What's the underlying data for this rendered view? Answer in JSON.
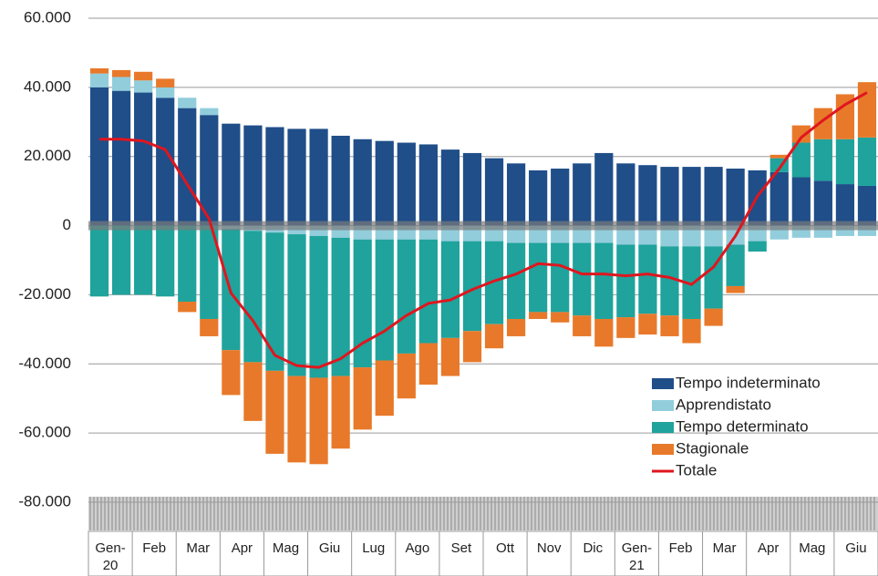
{
  "chart_data": {
    "type": "bar",
    "stacked": true,
    "grid": true,
    "legend": "lower right",
    "ylim": [
      -80000,
      60000
    ],
    "yticks": [
      {
        "value": 60000,
        "label": "60.000"
      },
      {
        "value": 40000,
        "label": "40.000"
      },
      {
        "value": 20000,
        "label": "20.000"
      },
      0,
      {
        "value": -20000,
        "label": "-20.000"
      },
      {
        "value": -40000,
        "label": "-40.000"
      },
      {
        "value": -60000,
        "label": "-60.000"
      },
      {
        "value": -80000,
        "label": "-80.000"
      }
    ],
    "categories": [
      "Gen-20",
      null,
      "Feb",
      null,
      "Mar",
      null,
      "Apr",
      null,
      "Mag",
      null,
      "Giu",
      null,
      "Lug",
      null,
      "Ago",
      null,
      "Set",
      null,
      "Ott",
      null,
      "Nov",
      null,
      "Dic",
      null,
      "Gen-21",
      null,
      "Feb",
      null,
      "Mar",
      null,
      "Apr",
      null,
      "Mag",
      null,
      "Giu",
      null
    ],
    "series": [
      {
        "name": "Tempo indeterminato",
        "color": "#1f4e89",
        "values": [
          40000,
          39000,
          38500,
          37000,
          34000,
          32000,
          29500,
          29000,
          28500,
          28000,
          28000,
          26000,
          25000,
          24500,
          24000,
          23500,
          22000,
          21000,
          19500,
          18000,
          16000,
          16500,
          18000,
          21000,
          18000,
          17500,
          17000,
          17000,
          17000,
          16500,
          16000,
          15500,
          14000,
          13000,
          12000,
          11500
        ]
      },
      {
        "name": "Apprendistato",
        "color": "#92cddc",
        "values": [
          4000,
          4000,
          3500,
          3000,
          3000,
          2000,
          -1000,
          -1500,
          -2000,
          -2500,
          -3000,
          -3500,
          -4000,
          -4000,
          -4000,
          -4000,
          -4500,
          -4500,
          -4500,
          -5000,
          -5000,
          -5000,
          -5000,
          -5000,
          -5500,
          -5500,
          -6000,
          -6000,
          -6000,
          -5500,
          -4500,
          -4000,
          -3500,
          -3500,
          -3000,
          -3000
        ]
      },
      {
        "name": "Tempo determinato",
        "color": "#1fa39c",
        "values": [
          -20500,
          -20000,
          -20000,
          -20500,
          -22000,
          -27000,
          -35000,
          -38000,
          -40000,
          -41000,
          -41000,
          -40000,
          -37000,
          -35000,
          -33000,
          -30000,
          -28000,
          -26000,
          -24000,
          -22000,
          -20000,
          -20000,
          -21000,
          -22000,
          -21000,
          -20000,
          -20000,
          -21000,
          -18000,
          -12000,
          -3000,
          4000,
          10000,
          12000,
          13000,
          14000
        ]
      },
      {
        "name": "Stagionale",
        "color": "#e8792a",
        "values": [
          1500,
          2000,
          2500,
          2500,
          -3000,
          -5000,
          -13000,
          -17000,
          -24000,
          -25000,
          -25000,
          -21000,
          -18000,
          -16000,
          -13000,
          -12000,
          -11000,
          -9000,
          -7000,
          -5000,
          -2000,
          -3000,
          -6000,
          -8000,
          -6000,
          -6000,
          -6000,
          -7000,
          -5000,
          -2000,
          0,
          1000,
          5000,
          9000,
          13000,
          16000
        ]
      },
      {
        "name": "Totale",
        "color": "#e0161e",
        "type": "line",
        "values": [
          25000,
          25000,
          24500,
          22000,
          12000,
          2000,
          -19500,
          -27500,
          -37500,
          -40500,
          -41000,
          -38500,
          -34000,
          -30500,
          -26000,
          -22500,
          -21500,
          -18500,
          -16000,
          -14000,
          -11000,
          -11500,
          -14000,
          -14000,
          -14500,
          -14000,
          -15000,
          -17000,
          -12000,
          -3000,
          8500,
          16500,
          25500,
          30500,
          35000,
          38500
        ]
      }
    ]
  }
}
